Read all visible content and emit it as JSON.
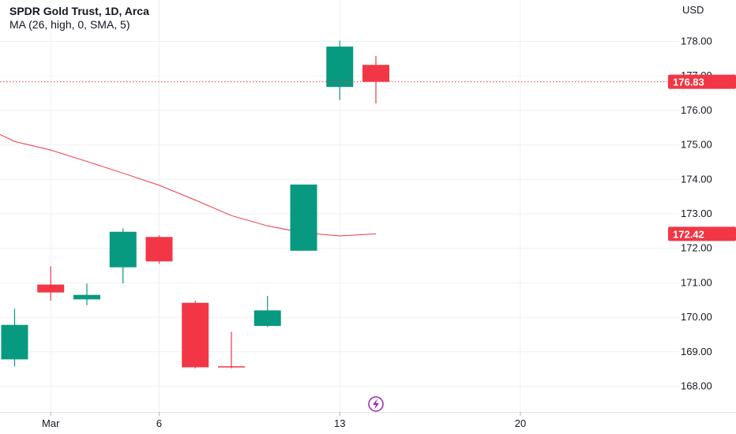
{
  "title": "SPDR Gold Trust, 1D, Arca",
  "indicator_label": "MA (26, high, 0, SMA, 5)",
  "currency": "USD",
  "colors": {
    "up": "#089981",
    "down": "#f23645",
    "ma": "#f23645",
    "grid": "#eef0f3",
    "last_price_line": "#f23645",
    "event_icon": "#9c27b0"
  },
  "event_icon": "lightning-icon",
  "chart_data": {
    "type": "candlestick",
    "ylim": [
      167.5,
      178.5
    ],
    "y_ticks": [
      "168.00",
      "169.00",
      "170.00",
      "171.00",
      "172.00",
      "173.00",
      "174.00",
      "175.00",
      "176.00",
      "177.00",
      "178.00"
    ],
    "x_ticks": [
      {
        "label": "Mar",
        "index": 1
      },
      {
        "label": "6",
        "index": 4
      },
      {
        "label": "13",
        "index": 9
      },
      {
        "label": "20",
        "index": 14
      }
    ],
    "candles": [
      {
        "o": 168.78,
        "h": 170.25,
        "l": 168.58,
        "c": 169.78
      },
      {
        "o": 170.95,
        "h": 171.48,
        "l": 170.48,
        "c": 170.72
      },
      {
        "o": 170.52,
        "h": 170.98,
        "l": 170.35,
        "c": 170.65
      },
      {
        "o": 171.45,
        "h": 172.58,
        "l": 170.98,
        "c": 172.48
      },
      {
        "o": 172.33,
        "h": 172.38,
        "l": 171.55,
        "c": 171.62
      },
      {
        "o": 170.42,
        "h": 170.48,
        "l": 168.52,
        "c": 168.55
      },
      {
        "o": 168.58,
        "h": 169.58,
        "l": 168.52,
        "c": 168.55
      },
      {
        "o": 169.75,
        "h": 170.62,
        "l": 169.72,
        "c": 170.2
      },
      {
        "o": 171.93,
        "h": 173.85,
        "l": 171.93,
        "c": 173.85
      },
      {
        "o": 176.68,
        "h": 178.02,
        "l": 176.3,
        "c": 177.85
      },
      {
        "o": 177.32,
        "h": 177.58,
        "l": 176.2,
        "c": 176.83
      }
    ],
    "ma_series": {
      "values": [
        175.1,
        174.85,
        174.52,
        174.18,
        173.83,
        173.4,
        172.95,
        172.65,
        172.45,
        172.36,
        172.42
      ],
      "start_value": 175.3
    },
    "price_tags": [
      {
        "label": "176.83",
        "value": 176.83,
        "dotted_line": true
      },
      {
        "label": "172.42",
        "value": 172.42,
        "dotted_line": false
      }
    ]
  }
}
